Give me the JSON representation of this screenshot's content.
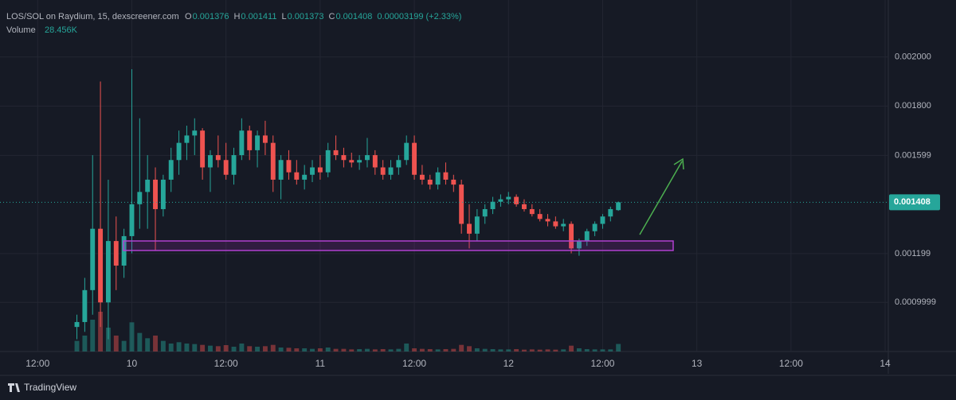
{
  "chart_data": {
    "type": "candlestick",
    "title": "LOS/SOL on Raydium, 15, dexscreener.com",
    "legend": {
      "open_label": "O",
      "open": 0.001376,
      "high_label": "H",
      "high": 0.001411,
      "low_label": "L",
      "low": 0.001373,
      "close_label": "C",
      "close": 0.001408,
      "change": "0.00003199 (+2.33%)",
      "volume_label": "Volume",
      "volume": "28.456K"
    },
    "up_color": "#26a69a",
    "down_color": "#ef5350",
    "x": [
      17,
      18,
      19,
      20,
      21,
      22,
      23,
      24,
      25,
      26,
      27,
      28,
      29,
      30,
      31,
      32,
      33,
      34,
      35,
      36,
      37,
      38,
      39,
      40,
      41,
      42,
      43,
      44,
      45,
      46,
      47,
      48,
      49,
      50,
      51,
      52,
      53,
      54,
      55,
      56,
      57,
      58,
      59,
      60,
      61,
      62,
      63,
      64,
      65,
      66,
      67,
      68,
      69,
      70,
      71,
      72,
      73,
      74,
      75,
      76,
      77,
      78,
      79,
      80,
      81,
      82,
      83,
      84,
      85,
      86
    ],
    "open": [
      0.0009,
      0.00092,
      0.00105,
      0.0013,
      0.001,
      0.00125,
      0.00115,
      0.00127,
      0.0014,
      0.00145,
      0.0015,
      0.00138,
      0.0015,
      0.00158,
      0.00165,
      0.00168,
      0.0017,
      0.00155,
      0.0016,
      0.00158,
      0.00152,
      0.0016,
      0.0017,
      0.00162,
      0.00168,
      0.00165,
      0.0015,
      0.00158,
      0.00153,
      0.0015,
      0.00152,
      0.00155,
      0.00153,
      0.00162,
      0.0016,
      0.00158,
      0.00157,
      0.00158,
      0.0016,
      0.00155,
      0.00152,
      0.00155,
      0.00158,
      0.00165,
      0.00152,
      0.0015,
      0.00148,
      0.00153,
      0.0015,
      0.00148,
      0.00132,
      0.00128,
      0.00135,
      0.00138,
      0.00141,
      0.00142,
      0.00143,
      0.0014,
      0.00138,
      0.00136,
      0.00134,
      0.00133,
      0.00131,
      0.00132,
      0.00122,
      0.00125,
      0.00129,
      0.00132,
      0.00135,
      0.001376
    ],
    "high": [
      0.00095,
      0.0011,
      0.0016,
      0.0019,
      0.0015,
      0.00135,
      0.0013,
      0.00195,
      0.00175,
      0.0016,
      0.00155,
      0.00152,
      0.00163,
      0.0017,
      0.00172,
      0.00175,
      0.00171,
      0.00162,
      0.00168,
      0.00165,
      0.00163,
      0.00175,
      0.00172,
      0.0017,
      0.00174,
      0.00168,
      0.0016,
      0.00162,
      0.00158,
      0.00156,
      0.00158,
      0.0016,
      0.00165,
      0.00168,
      0.00163,
      0.00161,
      0.0016,
      0.00167,
      0.00162,
      0.00158,
      0.00158,
      0.0016,
      0.00168,
      0.00168,
      0.00156,
      0.00152,
      0.00155,
      0.00157,
      0.00152,
      0.0015,
      0.0014,
      0.00138,
      0.0014,
      0.00143,
      0.00144,
      0.00145,
      0.00144,
      0.00142,
      0.0014,
      0.00138,
      0.00136,
      0.00135,
      0.00134,
      0.00133,
      0.00126,
      0.0013,
      0.00133,
      0.00136,
      0.00139,
      0.001411
    ],
    "low": [
      0.00085,
      0.00088,
      0.00095,
      0.0009,
      0.00085,
      0.00105,
      0.0011,
      0.0012,
      0.0013,
      0.0013,
      0.00121,
      0.00135,
      0.00145,
      0.00152,
      0.00158,
      0.0016,
      0.0015,
      0.00145,
      0.00155,
      0.0015,
      0.00148,
      0.00158,
      0.00158,
      0.00155,
      0.0016,
      0.00145,
      0.00142,
      0.0015,
      0.00148,
      0.00146,
      0.00149,
      0.0015,
      0.00151,
      0.00158,
      0.00155,
      0.00155,
      0.00154,
      0.00155,
      0.00152,
      0.0015,
      0.0015,
      0.00152,
      0.00156,
      0.0015,
      0.00148,
      0.00146,
      0.00146,
      0.00148,
      0.00145,
      0.00128,
      0.00122,
      0.00125,
      0.00132,
      0.00136,
      0.00139,
      0.0014,
      0.00139,
      0.00137,
      0.00135,
      0.00133,
      0.00131,
      0.0013,
      0.00129,
      0.0012,
      0.00119,
      0.00123,
      0.00127,
      0.0013,
      0.00133,
      0.001373
    ],
    "close": [
      0.00092,
      0.00105,
      0.0013,
      0.001,
      0.00125,
      0.00115,
      0.00127,
      0.0014,
      0.00145,
      0.0015,
      0.00138,
      0.0015,
      0.00158,
      0.00165,
      0.00168,
      0.0017,
      0.00155,
      0.0016,
      0.00158,
      0.00152,
      0.0016,
      0.0017,
      0.00162,
      0.00168,
      0.00165,
      0.0015,
      0.00158,
      0.00153,
      0.0015,
      0.00152,
      0.00155,
      0.00153,
      0.00162,
      0.0016,
      0.00158,
      0.00157,
      0.00158,
      0.0016,
      0.00155,
      0.00152,
      0.00155,
      0.00158,
      0.00165,
      0.00152,
      0.0015,
      0.00148,
      0.00153,
      0.0015,
      0.00148,
      0.00132,
      0.00128,
      0.00135,
      0.00138,
      0.00141,
      0.00142,
      0.00143,
      0.0014,
      0.00138,
      0.00136,
      0.00134,
      0.00133,
      0.00131,
      0.00132,
      0.00122,
      0.00125,
      0.00129,
      0.00132,
      0.00135,
      0.00138,
      0.001408
    ],
    "volumes": [
      40,
      60,
      120,
      150,
      90,
      60,
      40,
      110,
      70,
      50,
      60,
      40,
      30,
      35,
      30,
      28,
      25,
      22,
      20,
      24,
      18,
      30,
      20,
      18,
      20,
      25,
      15,
      14,
      12,
      12,
      10,
      12,
      15,
      10,
      10,
      8,
      9,
      10,
      8,
      9,
      8,
      10,
      30,
      12,
      10,
      9,
      8,
      9,
      10,
      25,
      20,
      12,
      10,
      9,
      8,
      8,
      9,
      7,
      8,
      7,
      8,
      7,
      8,
      22,
      12,
      9,
      8,
      8,
      8,
      28.456
    ],
    "xlim": [
      7.2,
      120.4
    ],
    "xticks": [
      {
        "value": 12,
        "label": "12:00"
      },
      {
        "value": 24,
        "label": "10"
      },
      {
        "value": 36,
        "label": "12:00"
      },
      {
        "value": 48,
        "label": "11"
      },
      {
        "value": 60,
        "label": "12:00"
      },
      {
        "value": 72,
        "label": "12"
      },
      {
        "value": 84,
        "label": "12:00"
      },
      {
        "value": 96,
        "label": "13"
      },
      {
        "value": 108,
        "label": "12:00"
      },
      {
        "value": 120,
        "label": "14"
      }
    ],
    "ylim": [
      0.0008,
      0.002232
    ],
    "yticks": [
      {
        "value": 0.002,
        "label": "0.002000"
      },
      {
        "value": 0.0018,
        "label": "0.001800"
      },
      0.001599,
      0.001199,
      0.0009999
    ],
    "grid": true,
    "footer": "TradingView"
  }
}
